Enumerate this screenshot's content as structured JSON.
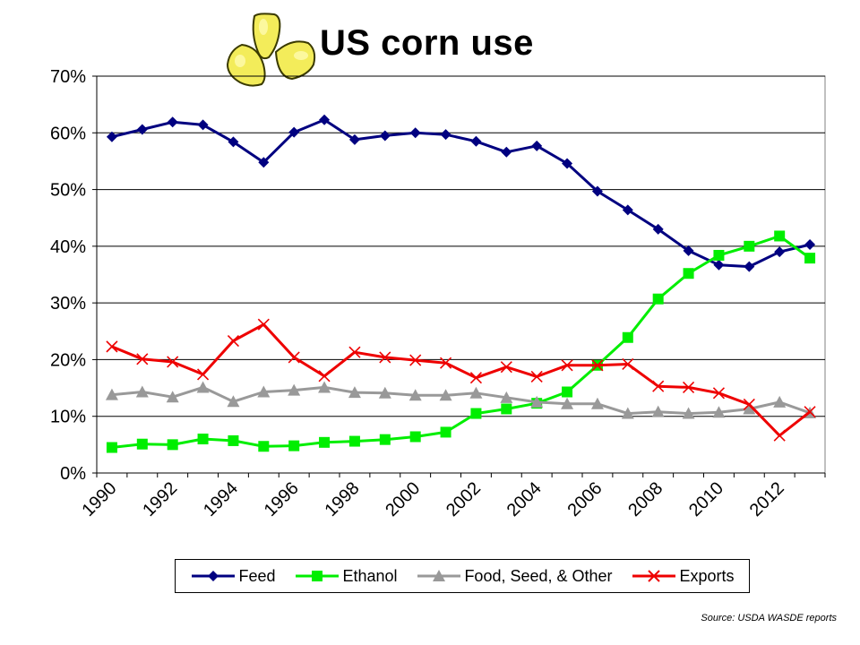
{
  "title": "US corn use",
  "source": "Source: USDA WASDE reports",
  "chart_data": {
    "type": "line",
    "title": "US corn use",
    "x": [
      1990,
      1991,
      1992,
      1993,
      1994,
      1995,
      1996,
      1997,
      1998,
      1999,
      2000,
      2001,
      2002,
      2003,
      2004,
      2005,
      2006,
      2007,
      2008,
      2009,
      2010,
      2011,
      2012,
      2013
    ],
    "x_tick_labels": [
      "1990",
      "1992",
      "1994",
      "1996",
      "1998",
      "2000",
      "2002",
      "2004",
      "2006",
      "2008",
      "2010",
      "2012"
    ],
    "y_tick_labels": [
      "0%",
      "10%",
      "20%",
      "30%",
      "40%",
      "50%",
      "60%",
      "70%"
    ],
    "ylim": [
      0,
      70
    ],
    "ylabel": "",
    "xlabel": "",
    "grid": "horizontal",
    "legend_position": "bottom",
    "series": [
      {
        "name": "Feed",
        "color": "#000080",
        "marker": "diamond",
        "values": [
          59.3,
          60.6,
          61.9,
          61.4,
          58.4,
          54.8,
          60.1,
          62.3,
          58.8,
          59.5,
          60.0,
          59.7,
          58.5,
          56.6,
          57.7,
          54.6,
          49.7,
          46.4,
          43.0,
          39.2,
          36.7,
          36.4,
          39.0,
          40.3
        ]
      },
      {
        "name": "Ethanol",
        "color": "#00ee00",
        "marker": "square",
        "values": [
          4.5,
          5.1,
          5.0,
          6.0,
          5.7,
          4.7,
          4.8,
          5.4,
          5.6,
          5.9,
          6.4,
          7.2,
          10.5,
          11.3,
          12.3,
          14.3,
          19.0,
          23.9,
          30.7,
          35.2,
          38.4,
          40.0,
          41.8,
          37.9
        ]
      },
      {
        "name": "Food, Seed, & Other",
        "color": "#999999",
        "marker": "triangle",
        "values": [
          13.8,
          14.3,
          13.4,
          15.1,
          12.6,
          14.3,
          14.6,
          15.1,
          14.2,
          14.1,
          13.7,
          13.7,
          14.1,
          13.3,
          12.5,
          12.2,
          12.2,
          10.5,
          10.8,
          10.5,
          10.7,
          11.3,
          12.5,
          10.6
        ]
      },
      {
        "name": "Exports",
        "color": "#ee0000",
        "marker": "x",
        "values": [
          22.3,
          20.1,
          19.6,
          17.4,
          23.3,
          26.2,
          20.4,
          17.1,
          21.3,
          20.4,
          19.9,
          19.4,
          16.8,
          18.7,
          17.0,
          19.0,
          19.0,
          19.2,
          15.3,
          15.1,
          14.1,
          12.1,
          6.6,
          10.8
        ]
      }
    ]
  }
}
